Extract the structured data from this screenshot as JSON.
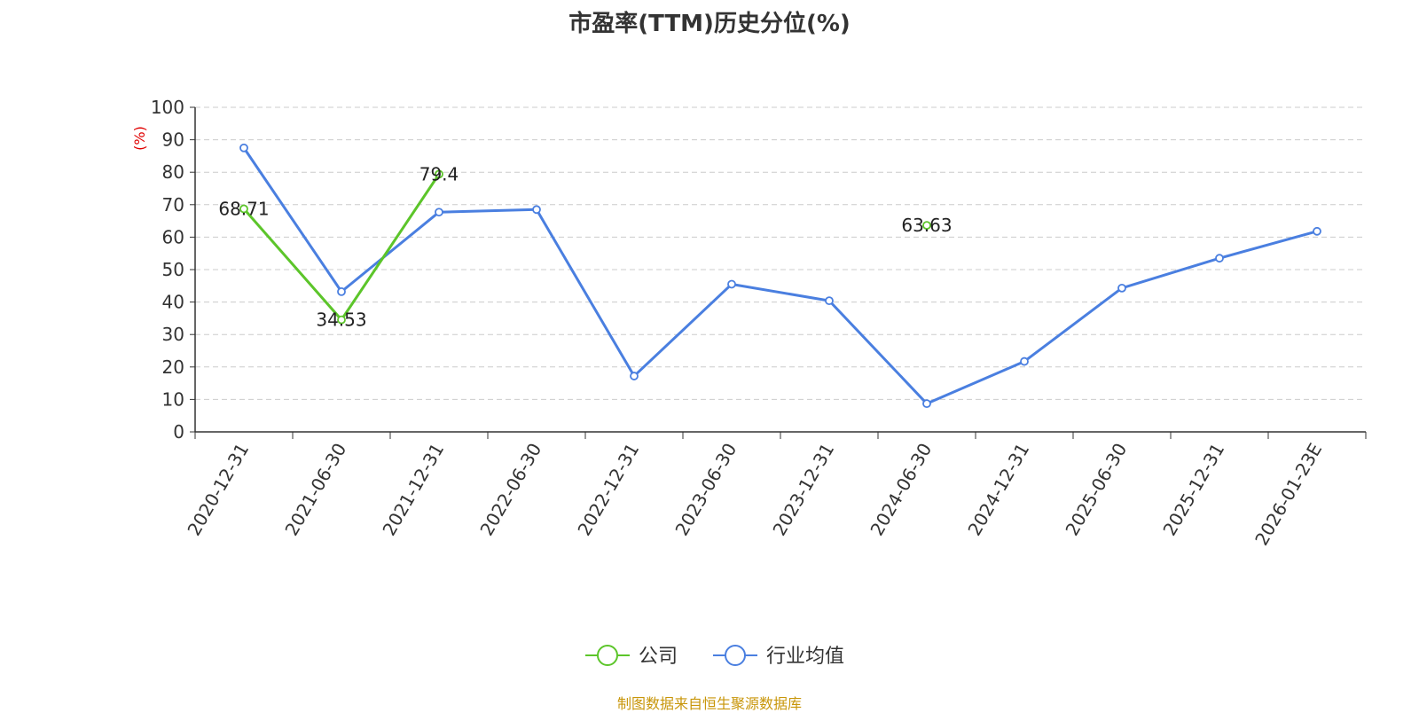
{
  "title": "市盈率(TTM)历史分位(%)",
  "source": "制图数据来自恒生聚源数据库",
  "chart_data": {
    "type": "line",
    "title": "市盈率(TTM)历史分位(%)",
    "ylabel": "(%)",
    "ylim": [
      0,
      100
    ],
    "yticks": [
      0,
      10,
      20,
      30,
      40,
      50,
      60,
      70,
      80,
      90,
      100
    ],
    "categories": [
      "2020-12-31",
      "2021-06-30",
      "2021-12-31",
      "2022-06-30",
      "2022-12-31",
      "2023-06-30",
      "2023-12-31",
      "2024-06-30",
      "2024-12-31",
      "2025-06-30",
      "2025-12-31",
      "2026-01-23E"
    ],
    "grid": true,
    "legend_position": "bottom-center",
    "series": [
      {
        "name": "公司",
        "color": "#5cc52a",
        "values": [
          68.71,
          34.53,
          79.4,
          null,
          null,
          null,
          null,
          63.63,
          null,
          null,
          null,
          null
        ],
        "labels": [
          "68.71",
          "34.53",
          "79.4",
          null,
          null,
          null,
          null,
          "63.63",
          null,
          null,
          null,
          null
        ]
      },
      {
        "name": "行业均值",
        "color": "#4a7fe0",
        "values": [
          87.5,
          43.2,
          67.7,
          68.5,
          17.2,
          45.5,
          40.4,
          8.7,
          21.7,
          44.3,
          53.5,
          61.8
        ]
      }
    ]
  }
}
